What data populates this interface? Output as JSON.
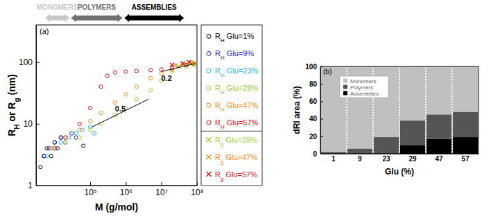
{
  "chart_data": [
    {
      "type": "scatter",
      "title": "(a)",
      "x_label": "M (g/mol)",
      "y_label": "RH or Rg (nm)",
      "log": true,
      "xlim": [
        3000,
        100000000
      ],
      "ylim": [
        1,
        400
      ],
      "xticks": [
        {
          "value": 100000,
          "label": "10⁵"
        },
        {
          "value": 1000000,
          "label": "10⁶"
        },
        {
          "value": 10000000,
          "label": "10⁷"
        },
        {
          "value": 100000000,
          "label": "10⁸"
        }
      ],
      "yticks": [
        1,
        10,
        100
      ],
      "legend": "right",
      "series": [
        {
          "name": "RH Glu=1%",
          "color": "#000000",
          "marker": "circle",
          "x": [
            4000,
            5000,
            6000,
            8000,
            10000,
            12000,
            15000,
            64000
          ],
          "values": [
            2,
            3,
            4,
            3,
            5,
            4,
            6,
            4.4
          ]
        },
        {
          "name": "RH Glu=9%",
          "color": "#1a1acc",
          "marker": "circle",
          "x": [
            5000,
            7000,
            10000,
            15000,
            20000,
            30000,
            40000
          ],
          "values": [
            3,
            4,
            5,
            6,
            5,
            7,
            6
          ]
        },
        {
          "name": "RH Glu=23%",
          "color": "#1fb4e6",
          "marker": "circle",
          "x": [
            6000,
            10000,
            15000,
            25000,
            40000,
            60000,
            100000,
            130000
          ],
          "values": [
            3,
            4,
            5,
            6,
            7,
            8,
            9,
            7
          ]
        },
        {
          "name": "RH Glu=29%",
          "color": "#9acd32",
          "marker": "circle",
          "x": [
            8000,
            20000,
            50000,
            100000,
            200000,
            500000,
            1000000,
            2000000,
            5000000,
            10000000,
            20000000,
            50000000,
            80000000
          ],
          "values": [
            4,
            5,
            6,
            8,
            10,
            14,
            18,
            25,
            35,
            50,
            70,
            85,
            90
          ]
        },
        {
          "name": "RH Glu=47%",
          "color": "#ff8c1a",
          "marker": "circle",
          "x": [
            8000,
            20000,
            50000,
            100000,
            200000,
            500000,
            1000000,
            2000000,
            5000000,
            10000000,
            20000000,
            50000000,
            80000000
          ],
          "values": [
            4,
            6,
            8,
            11,
            15,
            22,
            30,
            40,
            55,
            65,
            75,
            90,
            95
          ]
        },
        {
          "name": "RH Glu=57%",
          "color": "#e01010",
          "marker": "circle",
          "x": [
            10000,
            20000,
            50000,
            100000,
            200000,
            300000,
            500000,
            1000000,
            2000000,
            5000000,
            10000000,
            20000000,
            50000000,
            80000000
          ],
          "values": [
            4,
            6,
            10,
            18,
            40,
            60,
            68,
            70,
            72,
            74,
            76,
            80,
            90,
            95
          ]
        },
        {
          "name": "Rg Glu=29%",
          "color": "#9acd32",
          "marker": "cross",
          "x": [
            30000000,
            50000000,
            80000000
          ],
          "values": [
            85,
            90,
            95
          ]
        },
        {
          "name": "Rg Glu=47%",
          "color": "#ff8c1a",
          "marker": "cross",
          "x": [
            25000000,
            40000000,
            70000000
          ],
          "values": [
            88,
            92,
            98
          ]
        },
        {
          "name": "Rg Glu=57%",
          "color": "#e01010",
          "marker": "cross",
          "x": [
            20000000,
            40000000,
            60000000
          ],
          "values": [
            90,
            95,
            100
          ]
        }
      ],
      "annotations": [
        {
          "text": "0.5",
          "x": [
            109000,
            4300000
          ],
          "y": [
            8.8,
            25
          ],
          "text_x": 700000,
          "text_y": 15.8
        },
        {
          "text": "0.2",
          "x": [
            10000000,
            91000000
          ],
          "y": [
            70,
            95
          ],
          "text_x": 14000000,
          "text_y": 50
        }
      ],
      "regions": [
        {
          "text": "MONOMERS",
          "x": [
            5400,
            26000
          ],
          "color": "#c8c8c8"
        },
        {
          "text": "POLYMERS",
          "x": [
            29000,
            800000
          ],
          "color": "#707070"
        },
        {
          "text": "ASSEMBLIES",
          "x": [
            910000,
            43000000
          ],
          "color": "#000000"
        }
      ]
    },
    {
      "type": "bar",
      "title": "(b)",
      "x_label": "Glu (%)",
      "y_label": "dRI area (%)",
      "stacked": true,
      "categories": [
        "1",
        "9",
        "23",
        "29",
        "47",
        "57"
      ],
      "ylim": [
        0,
        100
      ],
      "yticks": [
        0,
        20,
        40,
        60,
        80,
        100
      ],
      "legend": "top-left",
      "series": [
        {
          "name": "Monomers",
          "color": "#c0c0c0",
          "values": [
            98,
            94,
            81,
            62,
            55,
            52
          ]
        },
        {
          "name": "Polymers",
          "color": "#555555",
          "values": [
            2,
            6,
            19,
            28,
            28,
            29
          ]
        },
        {
          "name": "Assemblies",
          "color": "#000000",
          "values": [
            0,
            0,
            0,
            10,
            17,
            19
          ]
        }
      ]
    }
  ]
}
